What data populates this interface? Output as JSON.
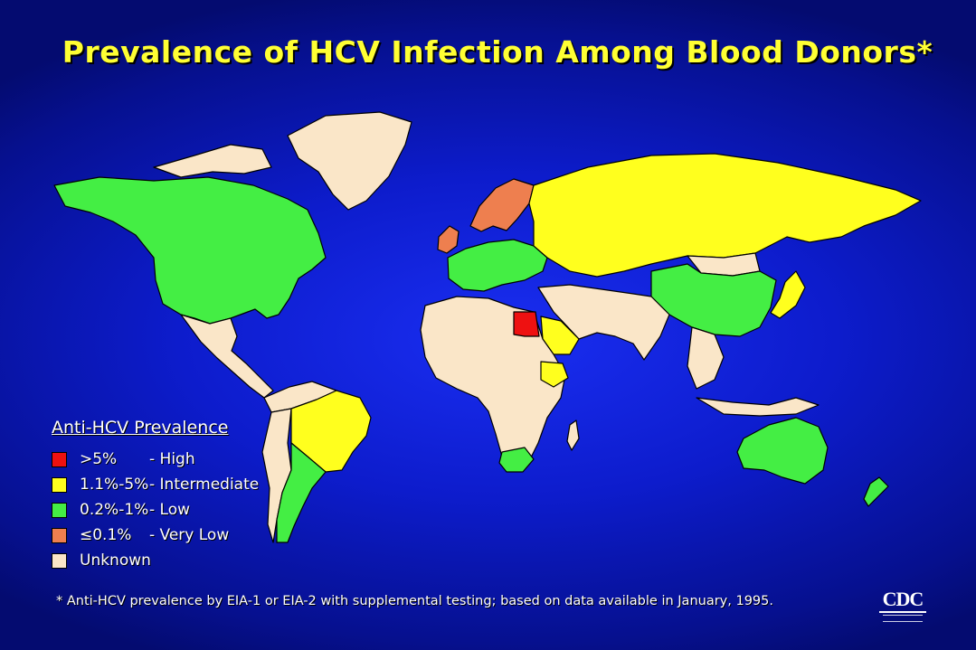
{
  "title": "Prevalence of HCV Infection Among Blood Donors*",
  "legend": {
    "title": "Anti-HCV Prevalence",
    "items": [
      {
        "range": ">5%",
        "label": "- High",
        "color": "#ee1111"
      },
      {
        "range": "1.1%-5%",
        "label": "- Intermediate",
        "color": "#ffff1e"
      },
      {
        "range": "0.2%-1%",
        "label": "- Low",
        "color": "#44ee44"
      },
      {
        "range": "≤0.1%",
        "label": "- Very Low",
        "color": "#ee7f4f"
      },
      {
        "range": "",
        "label": "Unknown",
        "color": "#fae6c8"
      }
    ]
  },
  "footnote": "* Anti-HCV prevalence by EIA-1 or EIA-2 with supplemental testing; based on data available in January, 1995.",
  "logo": {
    "text": "CDC"
  },
  "colors": {
    "ocean": "#0d1ccc",
    "border": "#000000"
  }
}
